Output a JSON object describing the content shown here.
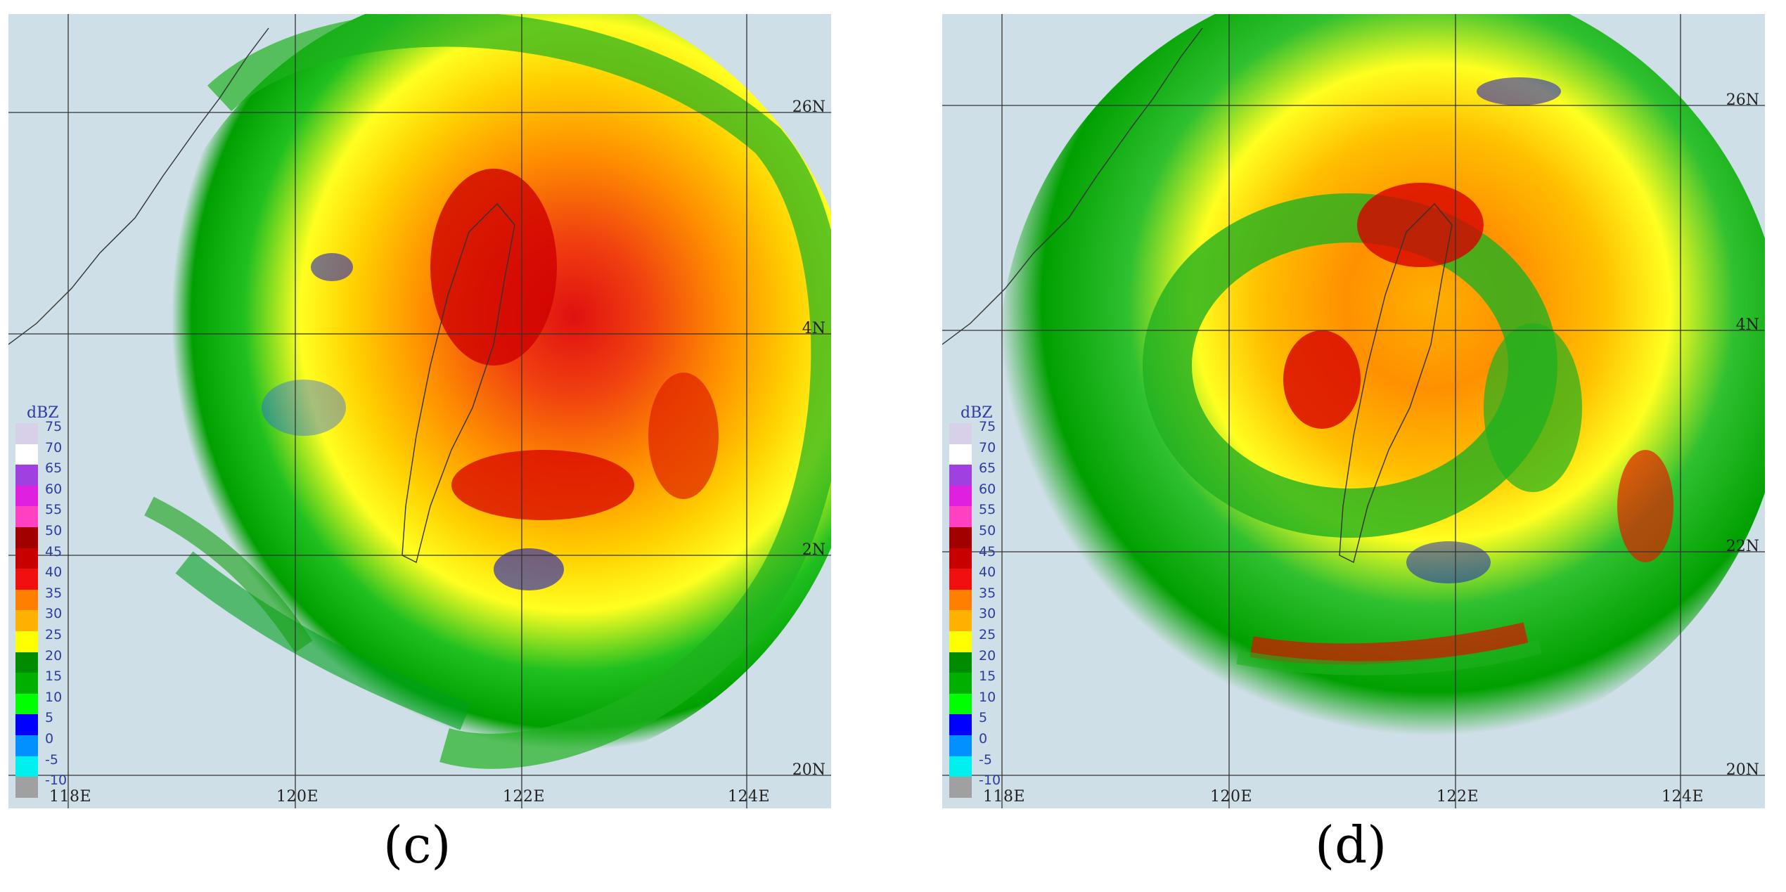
{
  "panels": [
    {
      "caption": "(c)",
      "legend_title": "dBZ",
      "lon_labels": [
        "118E",
        "120E",
        "122E",
        "124E"
      ],
      "lat_labels": [
        "26N",
        "4N",
        "2N",
        "20N"
      ]
    },
    {
      "caption": "(d)",
      "legend_title": "dBZ",
      "lon_labels": [
        "118E",
        "120E",
        "122E",
        "124E"
      ],
      "lat_labels": [
        "26N",
        "4N",
        "22N",
        "20N"
      ]
    }
  ],
  "legend": {
    "levels": [
      "75",
      "70",
      "65",
      "60",
      "55",
      "50",
      "45",
      "40",
      "35",
      "30",
      "25",
      "20",
      "15",
      "10",
      "5",
      "0",
      "-5",
      "-10"
    ],
    "colors": [
      "#d8cfe8",
      "#ffffff",
      "#a040e0",
      "#e020e0",
      "#ff40c0",
      "#a00000",
      "#c80000",
      "#f01010",
      "#ff8000",
      "#ffb000",
      "#ffff00",
      "#008c00",
      "#00b000",
      "#00ff00",
      "#0000ff",
      "#0090ff",
      "#00f0f0",
      "#a0a0a0"
    ]
  }
}
